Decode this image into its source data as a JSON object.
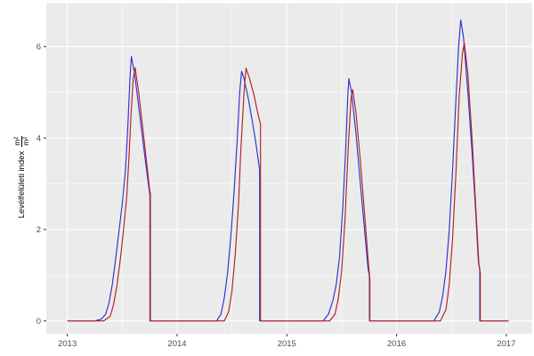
{
  "chart_data": {
    "type": "line",
    "title": "",
    "xlabel": "",
    "ylabel_text": "Levélfelületi index",
    "ylabel_frac_num": "m²",
    "ylabel_frac_den": "m²",
    "x_ticks": [
      2013,
      2014,
      2015,
      2016,
      2017
    ],
    "x_tick_labels": [
      "2013",
      "2014",
      "2015",
      "2016",
      "2017"
    ],
    "x_minor_ticks": [
      2013.5,
      2014.5,
      2015.5,
      2016.5
    ],
    "y_ticks": [
      0,
      2,
      4,
      6
    ],
    "y_tick_labels": [
      "0",
      "2",
      "4",
      "6"
    ],
    "y_minor_ticks": [
      1,
      3,
      5
    ],
    "xlim": [
      2012.808,
      2017.236
    ],
    "ylim": [
      -0.28,
      6.95
    ],
    "grid": "on",
    "legend": "none",
    "colors": {
      "panel_background": "#EBEBEB",
      "grid_major": "#FFFFFF",
      "grid_minor": "#FFFFFF",
      "tick_mark": "#333333",
      "tick_label": "#4D4D4D",
      "axis_title": "#000000",
      "series_blue": "#3030CF",
      "series_red": "#B22222"
    },
    "series": [
      {
        "name": "blue-series",
        "color_key": "series_blue",
        "points": [
          [
            2013.0,
            0
          ],
          [
            2013.25,
            0
          ],
          [
            2013.31,
            0.04
          ],
          [
            2013.35,
            0.15
          ],
          [
            2013.38,
            0.4
          ],
          [
            2013.41,
            0.8
          ],
          [
            2013.44,
            1.35
          ],
          [
            2013.47,
            1.95
          ],
          [
            2013.5,
            2.55
          ],
          [
            2013.53,
            3.3
          ],
          [
            2013.55,
            4.2
          ],
          [
            2013.57,
            5.3
          ],
          [
            2013.583,
            5.78
          ],
          [
            2013.61,
            5.45
          ],
          [
            2013.65,
            4.7
          ],
          [
            2013.69,
            3.9
          ],
          [
            2013.73,
            3.15
          ],
          [
            2013.752,
            2.75
          ],
          [
            2013.752,
            0
          ],
          [
            2014.36,
            0
          ],
          [
            2014.4,
            0.15
          ],
          [
            2014.43,
            0.5
          ],
          [
            2014.46,
            1.05
          ],
          [
            2014.49,
            1.85
          ],
          [
            2014.52,
            2.85
          ],
          [
            2014.55,
            4.05
          ],
          [
            2014.57,
            5.0
          ],
          [
            2014.588,
            5.46
          ],
          [
            2014.61,
            5.3
          ],
          [
            2014.65,
            4.85
          ],
          [
            2014.69,
            4.3
          ],
          [
            2014.72,
            3.85
          ],
          [
            2014.752,
            3.3
          ],
          [
            2014.752,
            0
          ],
          [
            2015.33,
            0
          ],
          [
            2015.38,
            0.15
          ],
          [
            2015.42,
            0.45
          ],
          [
            2015.45,
            0.8
          ],
          [
            2015.48,
            1.4
          ],
          [
            2015.51,
            2.5
          ],
          [
            2015.535,
            3.7
          ],
          [
            2015.555,
            4.9
          ],
          [
            2015.565,
            5.3
          ],
          [
            2015.59,
            5.0
          ],
          [
            2015.63,
            4.1
          ],
          [
            2015.67,
            3.0
          ],
          [
            2015.71,
            1.95
          ],
          [
            2015.74,
            1.15
          ],
          [
            2015.753,
            0.97
          ],
          [
            2015.753,
            0
          ],
          [
            2016.34,
            0
          ],
          [
            2016.39,
            0.2
          ],
          [
            2016.42,
            0.55
          ],
          [
            2016.45,
            1.1
          ],
          [
            2016.48,
            2.0
          ],
          [
            2016.51,
            3.3
          ],
          [
            2016.54,
            4.8
          ],
          [
            2016.565,
            6.0
          ],
          [
            2016.585,
            6.58
          ],
          [
            2016.61,
            6.2
          ],
          [
            2016.65,
            5.0
          ],
          [
            2016.69,
            3.6
          ],
          [
            2016.72,
            2.4
          ],
          [
            2016.745,
            1.3
          ],
          [
            2016.758,
            1.1
          ],
          [
            2016.758,
            0
          ],
          [
            2017.02,
            0
          ]
        ]
      },
      {
        "name": "red-series",
        "color_key": "series_red",
        "points": [
          [
            2013.0,
            0
          ],
          [
            2013.33,
            0
          ],
          [
            2013.39,
            0.1
          ],
          [
            2013.42,
            0.35
          ],
          [
            2013.45,
            0.75
          ],
          [
            2013.48,
            1.3
          ],
          [
            2013.51,
            1.95
          ],
          [
            2013.54,
            2.7
          ],
          [
            2013.56,
            3.5
          ],
          [
            2013.58,
            4.5
          ],
          [
            2013.6,
            5.3
          ],
          [
            2013.617,
            5.54
          ],
          [
            2013.65,
            5.0
          ],
          [
            2013.69,
            4.15
          ],
          [
            2013.73,
            3.3
          ],
          [
            2013.75,
            2.86
          ],
          [
            2013.757,
            2.78
          ],
          [
            2013.757,
            0
          ],
          [
            2014.43,
            0
          ],
          [
            2014.47,
            0.2
          ],
          [
            2014.5,
            0.65
          ],
          [
            2014.53,
            1.45
          ],
          [
            2014.56,
            2.55
          ],
          [
            2014.58,
            3.7
          ],
          [
            2014.61,
            5.0
          ],
          [
            2014.628,
            5.53
          ],
          [
            2014.66,
            5.3
          ],
          [
            2014.7,
            4.95
          ],
          [
            2014.73,
            4.6
          ],
          [
            2014.76,
            4.3
          ],
          [
            2014.76,
            0
          ],
          [
            2015.39,
            0
          ],
          [
            2015.44,
            0.15
          ],
          [
            2015.47,
            0.5
          ],
          [
            2015.5,
            1.1
          ],
          [
            2015.53,
            2.2
          ],
          [
            2015.56,
            3.8
          ],
          [
            2015.585,
            4.85
          ],
          [
            2015.6,
            5.06
          ],
          [
            2015.63,
            4.55
          ],
          [
            2015.67,
            3.5
          ],
          [
            2015.71,
            2.3
          ],
          [
            2015.745,
            1.2
          ],
          [
            2015.757,
            0.92
          ],
          [
            2015.757,
            0
          ],
          [
            2016.4,
            0
          ],
          [
            2016.45,
            0.25
          ],
          [
            2016.48,
            0.8
          ],
          [
            2016.51,
            1.8
          ],
          [
            2016.54,
            3.2
          ],
          [
            2016.57,
            4.9
          ],
          [
            2016.6,
            5.85
          ],
          [
            2016.617,
            6.08
          ],
          [
            2016.65,
            5.4
          ],
          [
            2016.69,
            3.9
          ],
          [
            2016.72,
            2.55
          ],
          [
            2016.75,
            1.25
          ],
          [
            2016.763,
            1.05
          ],
          [
            2016.763,
            0
          ],
          [
            2017.02,
            0
          ]
        ]
      }
    ]
  }
}
